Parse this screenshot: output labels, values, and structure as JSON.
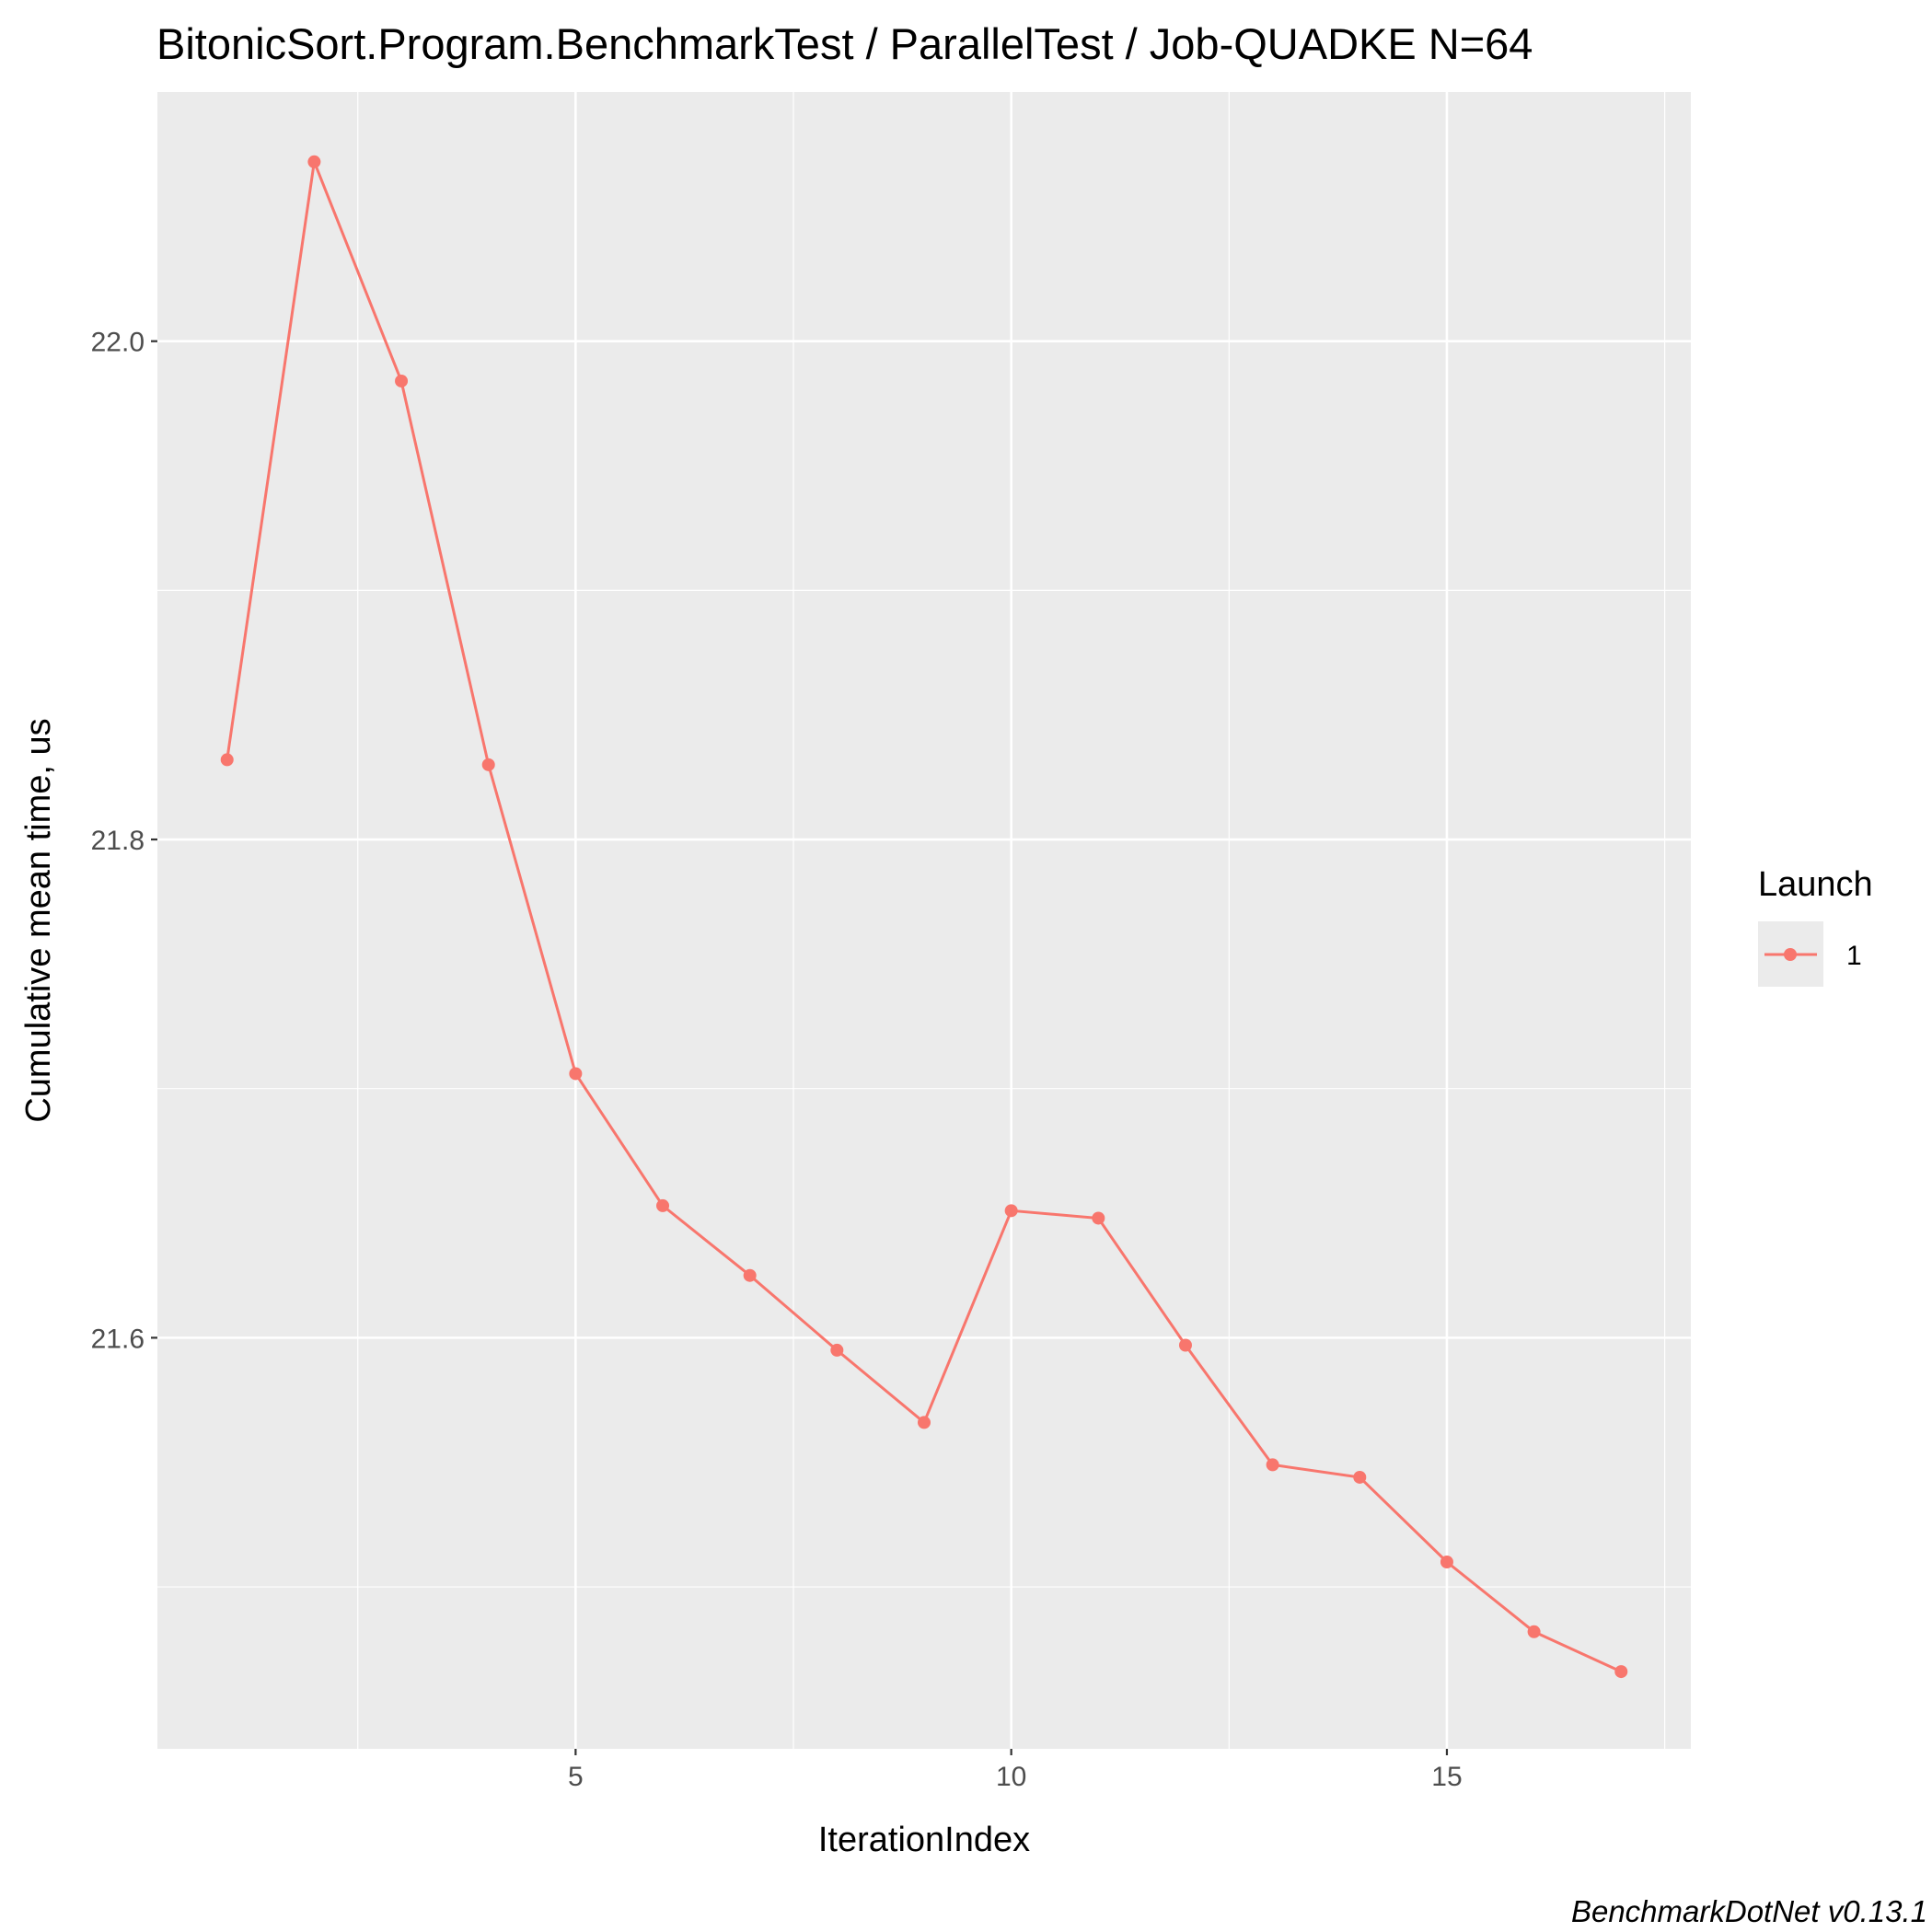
{
  "chart_data": {
    "type": "line",
    "title": "BitonicSort.Program.BenchmarkTest / ParallelTest / Job-QUADKE N=64",
    "xlabel": "IterationIndex",
    "ylabel": "Cumulative mean time, us",
    "x_ticks": [
      "5",
      "10",
      "15"
    ],
    "y_ticks": [
      "21.6",
      "21.8",
      "22.0"
    ],
    "xlim": [
      0.2,
      17.8
    ],
    "ylim": [
      21.435,
      22.1
    ],
    "grid": true,
    "legend": {
      "title": "Launch",
      "position": "right"
    },
    "caption": "BenchmarkDotNet v0.13.1",
    "colors": {
      "series": "#f8766d",
      "panel": "#ebebeb",
      "grid": "#ffffff"
    },
    "series": [
      {
        "name": "1",
        "x": [
          1,
          2,
          3,
          4,
          5,
          6,
          7,
          8,
          9,
          10,
          11,
          12,
          13,
          14,
          15,
          16,
          17
        ],
        "values": [
          21.832,
          22.072,
          21.984,
          21.83,
          21.706,
          21.653,
          21.625,
          21.595,
          21.566,
          21.651,
          21.648,
          21.597,
          21.549,
          21.544,
          21.51,
          21.482,
          21.466
        ]
      }
    ]
  }
}
